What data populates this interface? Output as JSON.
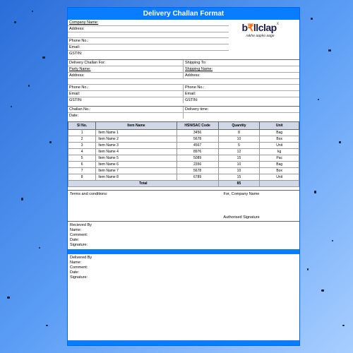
{
  "title": "Delivery Challan Format",
  "logo": {
    "b": "b",
    "rupee": "₹",
    "rest": "llclap",
    "x": "x",
    "tagline": "rakhe aapko aage"
  },
  "topFields": {
    "company_label": "Company Name:",
    "address_label": "Address:",
    "phone_label": "Phone No.:",
    "email_label": "Email:",
    "gstin_label": "GSTIN:"
  },
  "mid": {
    "dcf_label": "Delivery Challan For:",
    "ship_to_label": "Shipping To:",
    "party_label": "Party Name:",
    "ship_name_label": "Shipping Name:",
    "address_label": "Address:",
    "phone_label": "Phone No.:",
    "email_label": "Email:",
    "gstin_label": "GSTIN:",
    "challan_no_label": "Challan No.:",
    "delivery_time_label": "Delivery time:",
    "date_label": "Date:"
  },
  "items": {
    "headers": {
      "sl": "Sl No.",
      "name": "Item Name",
      "hsn": "HSN/SAC Code",
      "qty": "Quantity",
      "unit": "Unit"
    },
    "rows": [
      {
        "sl": "1",
        "name": "Item Name 1",
        "hsn": "3456",
        "qty": "8",
        "unit": "Bag"
      },
      {
        "sl": "2",
        "name": "Item Name 2",
        "hsn": "5678",
        "qty": "10",
        "unit": "Box"
      },
      {
        "sl": "3",
        "name": "Item Name 3",
        "hsn": "4567",
        "qty": "5",
        "unit": "Unit"
      },
      {
        "sl": "4",
        "name": "Item Name 4",
        "hsn": "8976",
        "qty": "12",
        "unit": "kg"
      },
      {
        "sl": "5",
        "name": "Item Name 5",
        "hsn": "5089",
        "qty": "15",
        "unit": "Pac"
      },
      {
        "sl": "6",
        "name": "Item Name 6",
        "hsn": "2356",
        "qty": "10",
        "unit": "Bag"
      },
      {
        "sl": "7",
        "name": "Item Name 7",
        "hsn": "5678",
        "qty": "10",
        "unit": "Box"
      },
      {
        "sl": "8",
        "name": "Item Name 8",
        "hsn": "6789",
        "qty": "15",
        "unit": "Unit"
      }
    ],
    "total_label": "Total",
    "total_qty": "85"
  },
  "sig": {
    "terms_label": "Terms and conditions:",
    "for_company": "For, Company Name",
    "auth_sig": "Authorised Signature"
  },
  "recv": {
    "header": "Recieved By",
    "name": "Name:",
    "comment": "Comment:",
    "date": "Date:",
    "signature": "Signature:"
  },
  "deliv": {
    "header": "Delivered By",
    "name": "Name:",
    "comment": "Comment:",
    "date": "Date:",
    "signature": "Signature:"
  },
  "colors": {
    "accent": "#0a7cff",
    "header_bg": "#d0d8e8"
  }
}
